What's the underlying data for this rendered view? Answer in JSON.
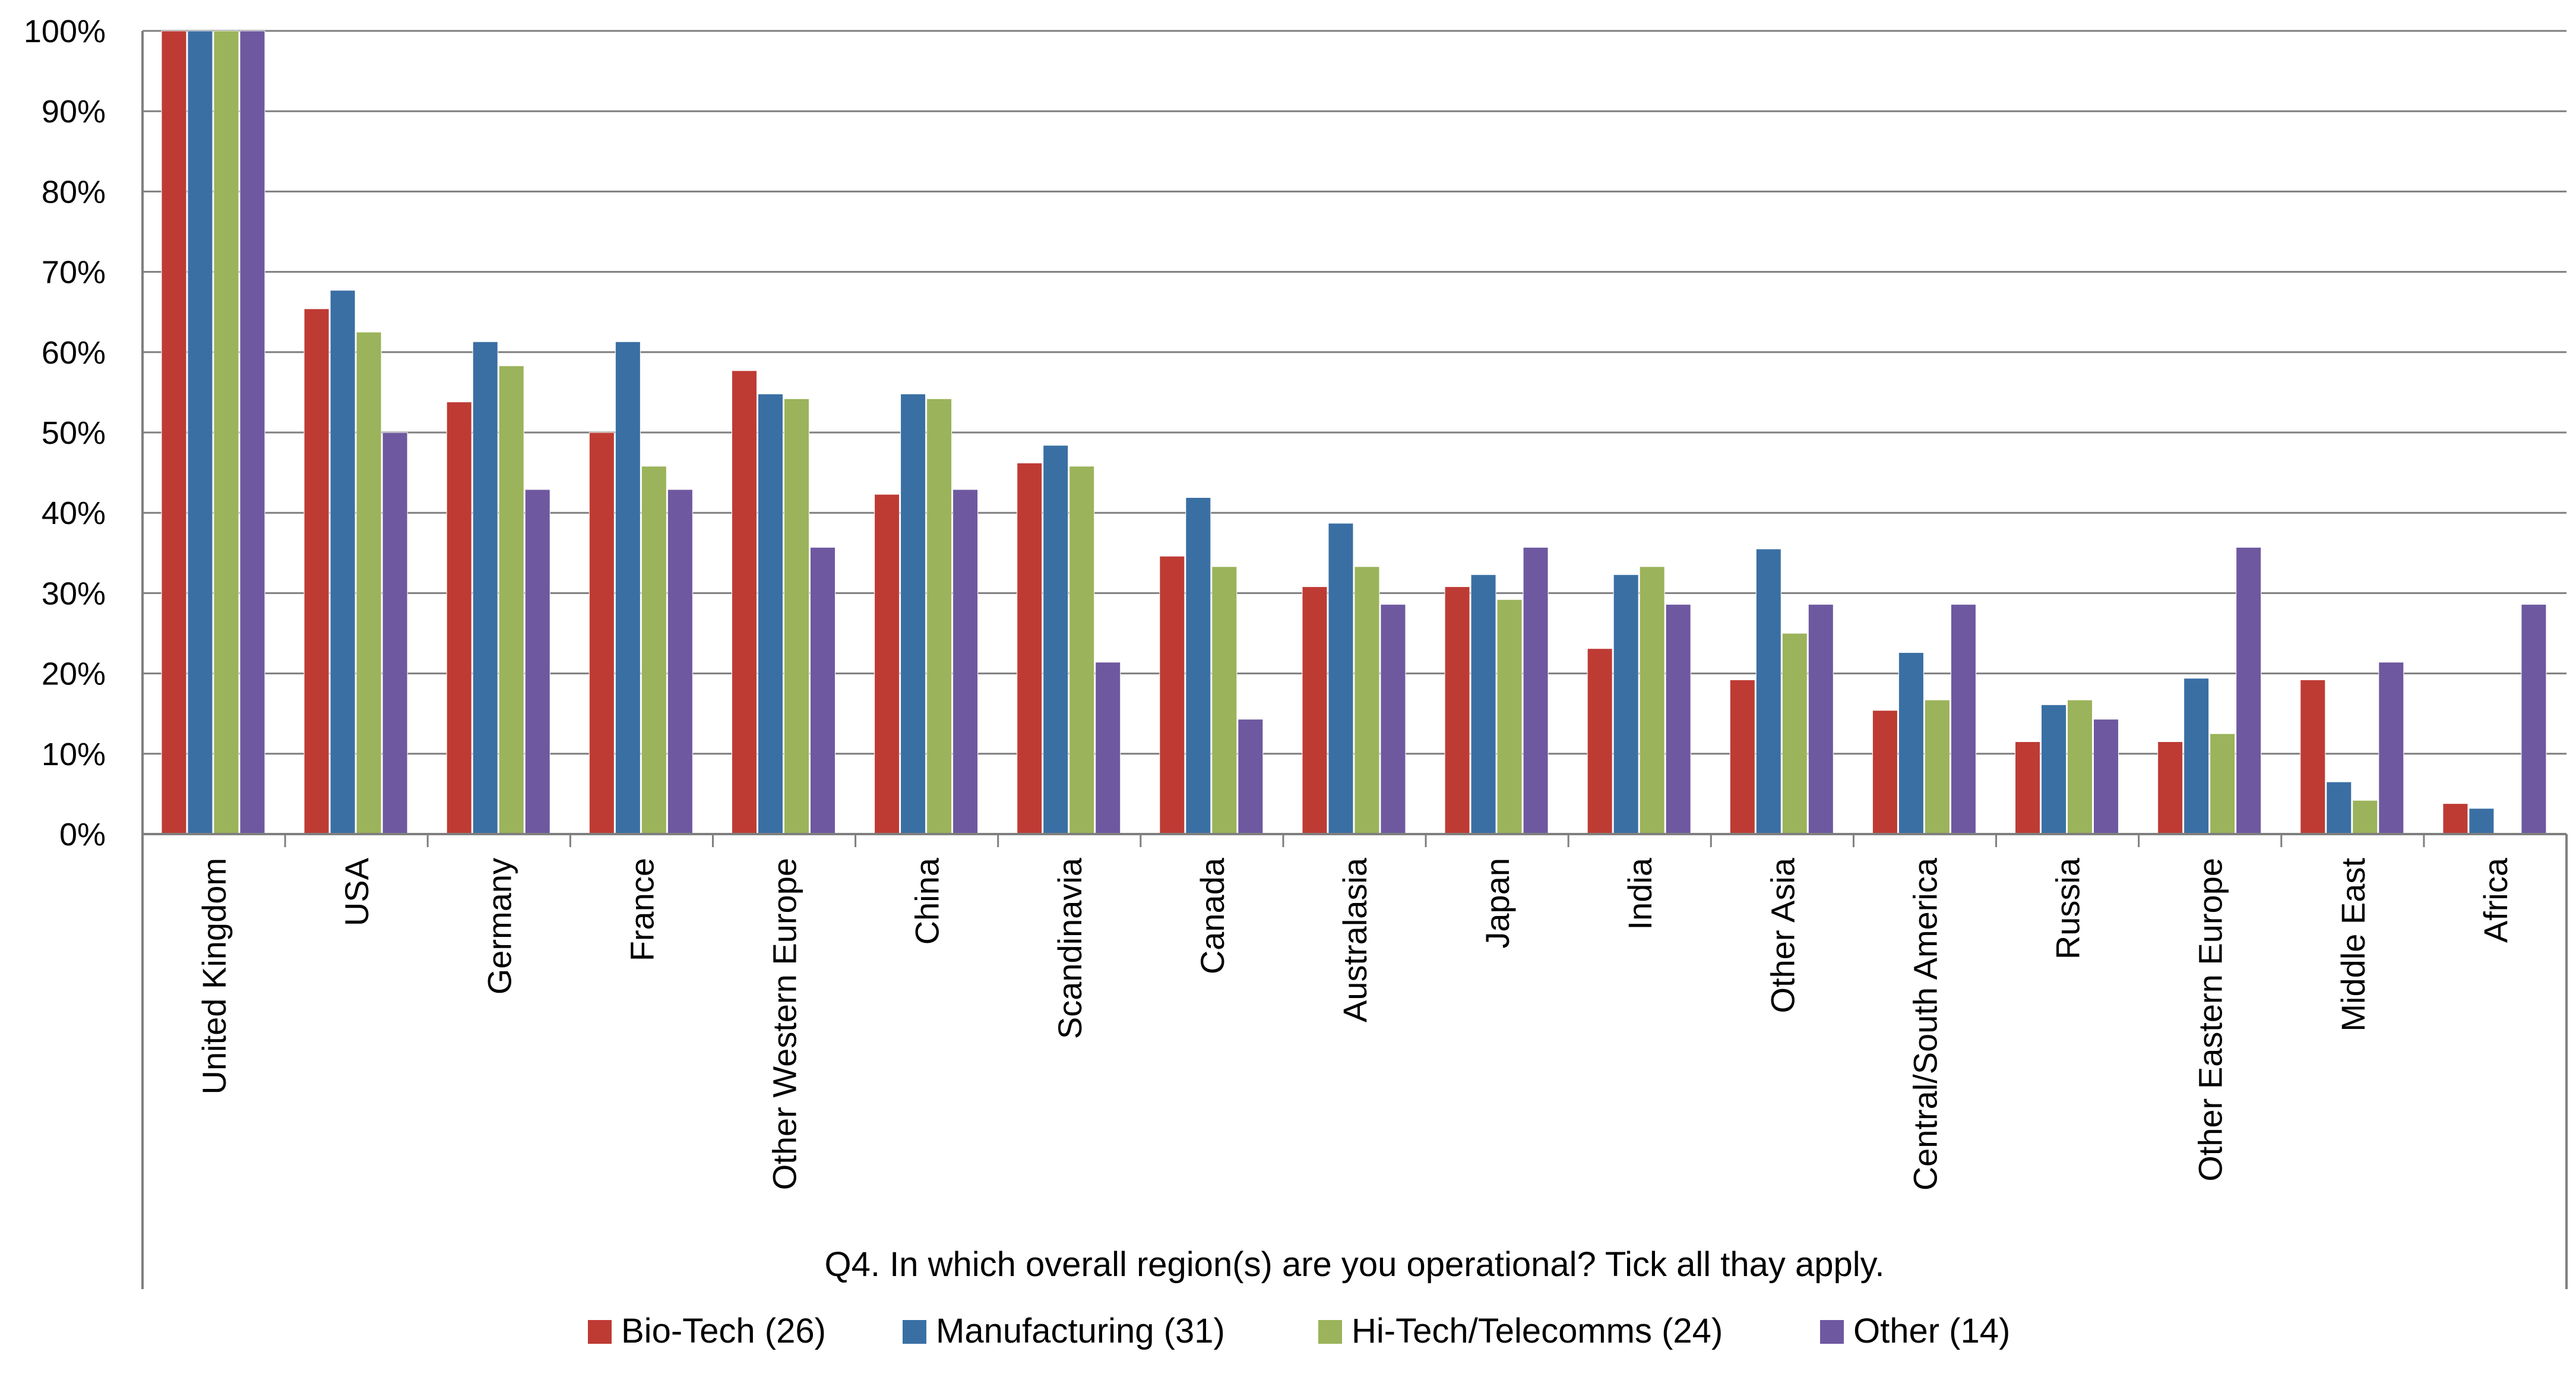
{
  "chart_data": {
    "type": "bar",
    "title": "",
    "xlabel": "Q4. In which overall region(s) are you operational?  Tick all thay apply.",
    "ylabel": "",
    "ylim": [
      0,
      100
    ],
    "yticks": [
      "0%",
      "10%",
      "20%",
      "30%",
      "40%",
      "50%",
      "60%",
      "70%",
      "80%",
      "90%",
      "100%"
    ],
    "grid": true,
    "legend_position": "bottom",
    "categories": [
      "United Kingdom",
      "USA",
      "Germany",
      "France",
      "Other Western Europe",
      "China",
      "Scandinavia",
      "Canada",
      "Australasia",
      "Japan",
      "India",
      "Other Asia",
      "Central/South America",
      "Russia",
      "Other Eastern Europe",
      "Middle East",
      "Africa"
    ],
    "series": [
      {
        "name": "Bio-Tech (26)",
        "color": "#be3b34",
        "values": [
          100,
          65.4,
          53.8,
          50.0,
          57.7,
          42.3,
          46.2,
          34.6,
          30.8,
          30.8,
          23.1,
          19.2,
          15.4,
          11.5,
          11.5,
          19.2,
          3.8
        ]
      },
      {
        "name": "Manufacturing (31)",
        "color": "#3a6fa4",
        "values": [
          100,
          67.7,
          61.3,
          61.3,
          54.8,
          54.8,
          48.4,
          41.9,
          38.7,
          32.3,
          32.3,
          35.5,
          22.6,
          16.1,
          19.4,
          6.5,
          3.2
        ]
      },
      {
        "name": "Hi-Tech/Telecomms (24)",
        "color": "#9bb35a",
        "values": [
          100,
          62.5,
          58.3,
          45.8,
          54.2,
          54.2,
          45.8,
          33.3,
          33.3,
          29.2,
          33.3,
          25.0,
          16.7,
          16.7,
          12.5,
          4.2,
          0
        ]
      },
      {
        "name": "Other (14)",
        "color": "#6e58a0",
        "values": [
          100,
          50.0,
          42.9,
          42.9,
          35.7,
          42.9,
          21.4,
          14.3,
          28.6,
          35.7,
          28.6,
          28.6,
          28.6,
          14.3,
          35.7,
          21.4,
          28.6
        ]
      }
    ]
  }
}
